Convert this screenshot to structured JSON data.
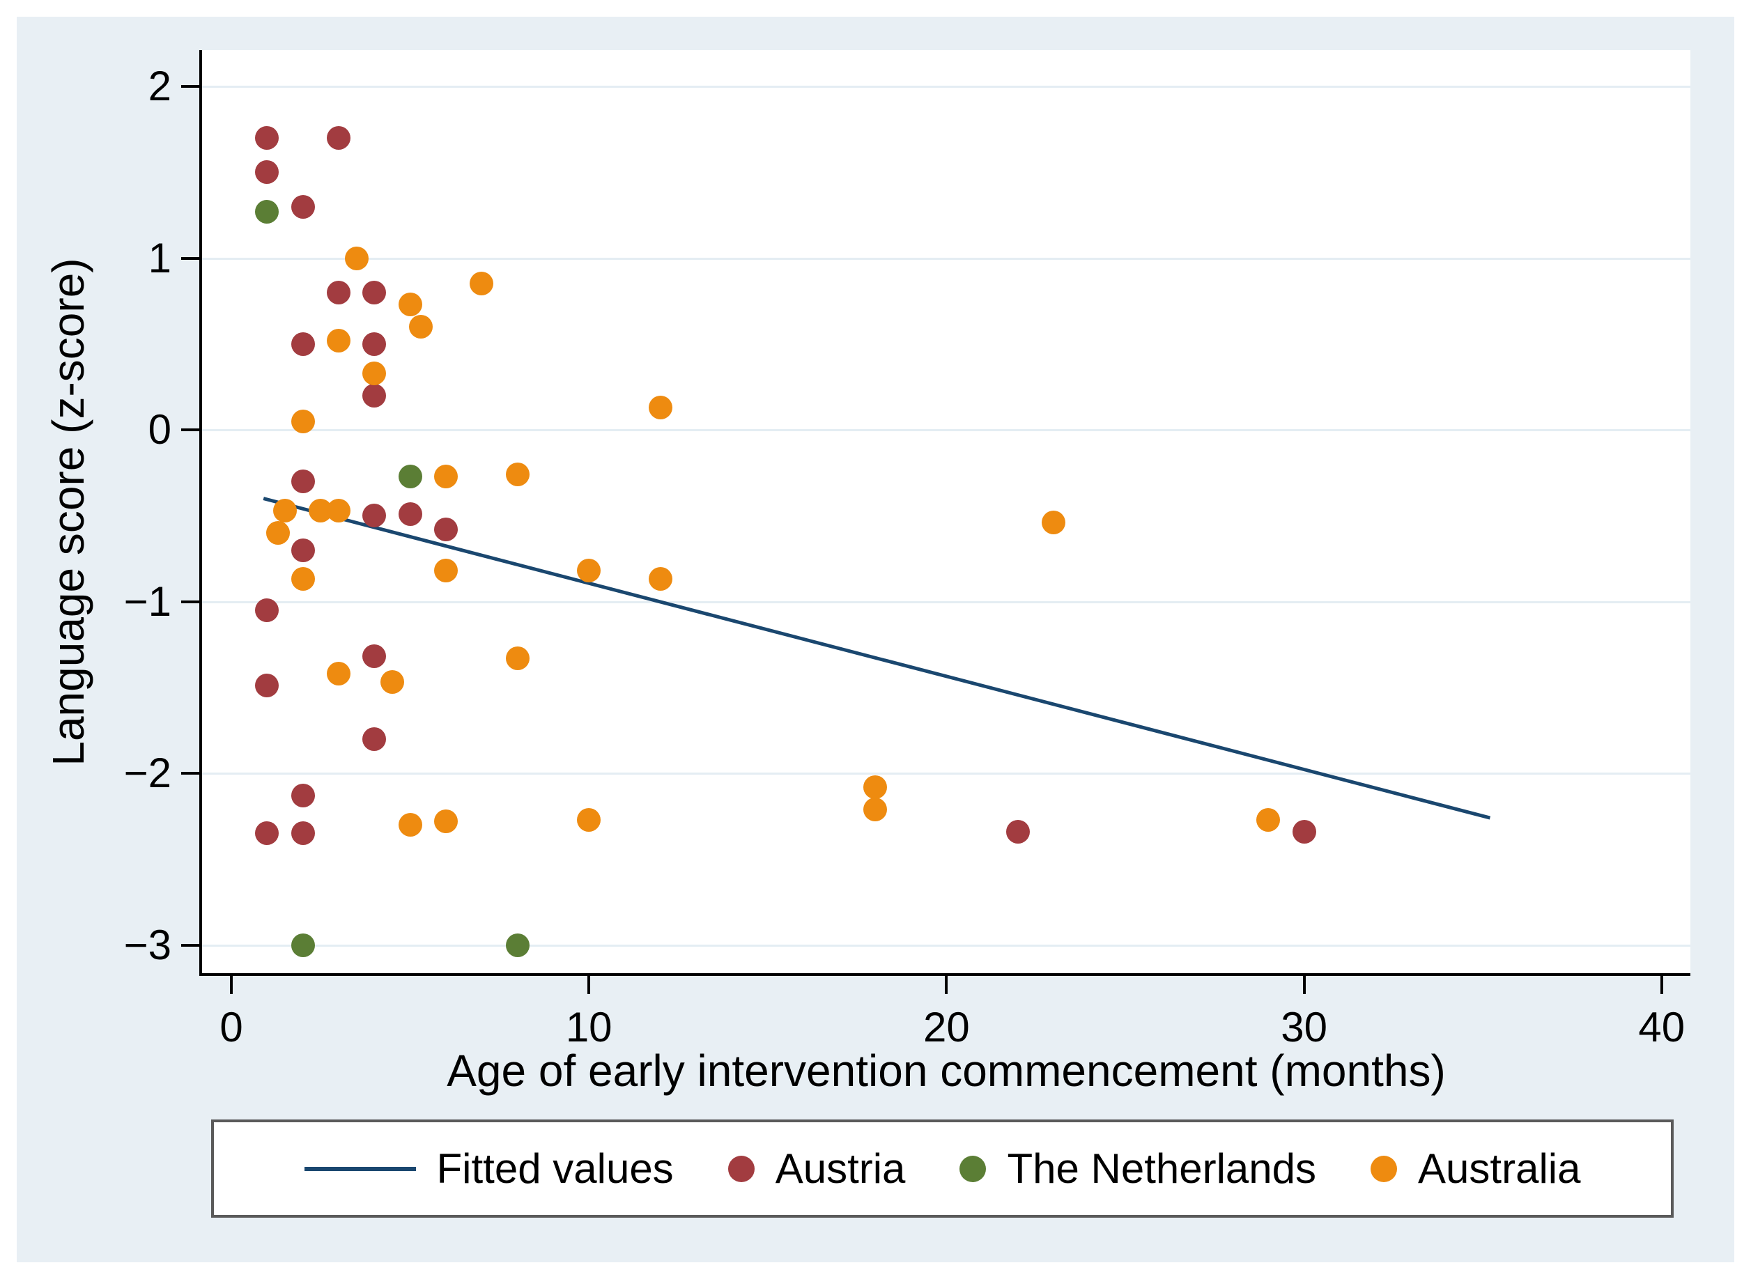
{
  "figure": {
    "background": "#e8eff4",
    "plot_background": "#ffffff",
    "grid_color": "#e4edf3",
    "axis_color": "#000000"
  },
  "axes": {
    "x_title": "Age of early intervention commencement (months)",
    "y_title": "Language score (z-score)",
    "x_tick_labels": [
      "0",
      "10",
      "20",
      "30",
      "40"
    ],
    "y_tick_labels": [
      "2",
      "1",
      "0",
      "−1",
      "−2",
      "−3"
    ]
  },
  "legend": {
    "items": [
      {
        "label": "Fitted values",
        "marker": "line",
        "color": "#1a476f"
      },
      {
        "label": "Austria",
        "marker": "dot",
        "color": "#a23c40"
      },
      {
        "label": "The Netherlands",
        "marker": "dot",
        "color": "#5b7e35"
      },
      {
        "label": "Australia",
        "marker": "dot",
        "color": "#ee8b10"
      }
    ]
  },
  "chart_data": {
    "type": "scatter",
    "title": "",
    "xlabel": "Age of early intervention commencement (months)",
    "ylabel": "Language score (z-score)",
    "xlim": [
      -0.8,
      40.8
    ],
    "ylim": [
      -3.16,
      2.21
    ],
    "x_ticks": [
      0,
      10,
      20,
      30,
      40
    ],
    "y_ticks": [
      2,
      1,
      0,
      -1,
      -2,
      -3
    ],
    "grid": "horizontal",
    "legend_position": "bottom",
    "series": [
      {
        "name": "Austria",
        "color": "#a23c40",
        "points": [
          [
            1,
            1.7
          ],
          [
            3,
            1.7
          ],
          [
            1,
            1.5
          ],
          [
            2,
            1.3
          ],
          [
            3,
            0.8
          ],
          [
            4,
            0.8
          ],
          [
            2,
            0.5
          ],
          [
            4,
            0.5
          ],
          [
            4,
            0.2
          ],
          [
            2,
            -0.3
          ],
          [
            4,
            -0.5
          ],
          [
            5,
            -0.49
          ],
          [
            6,
            -0.58
          ],
          [
            2,
            -0.7
          ],
          [
            1,
            -1.05
          ],
          [
            4,
            -1.32
          ],
          [
            1,
            -1.49
          ],
          [
            4,
            -1.8
          ],
          [
            2,
            -2.13
          ],
          [
            1,
            -2.35
          ],
          [
            2,
            -2.35
          ],
          [
            22,
            -2.34
          ],
          [
            30,
            -2.34
          ]
        ]
      },
      {
        "name": "The Netherlands",
        "color": "#5b7e35",
        "points": [
          [
            1,
            1.27
          ],
          [
            5,
            -0.27
          ],
          [
            2,
            -3.0
          ],
          [
            8,
            -3.0
          ]
        ]
      },
      {
        "name": "Australia",
        "color": "#ee8b10",
        "points": [
          [
            3.5,
            1.0
          ],
          [
            7,
            0.85
          ],
          [
            5,
            0.73
          ],
          [
            5.3,
            0.6
          ],
          [
            3,
            0.52
          ],
          [
            4,
            0.33
          ],
          [
            2,
            0.05
          ],
          [
            12,
            0.13
          ],
          [
            1.5,
            -0.47
          ],
          [
            2.5,
            -0.47
          ],
          [
            3,
            -0.47
          ],
          [
            1.3,
            -0.6
          ],
          [
            6,
            -0.27
          ],
          [
            8,
            -0.26
          ],
          [
            2,
            -0.87
          ],
          [
            6,
            -0.82
          ],
          [
            10,
            -0.82
          ],
          [
            12,
            -0.87
          ],
          [
            23,
            -0.54
          ],
          [
            3,
            -1.42
          ],
          [
            4.5,
            -1.47
          ],
          [
            8,
            -1.33
          ],
          [
            5,
            -2.3
          ],
          [
            6,
            -2.28
          ],
          [
            10,
            -2.27
          ],
          [
            18,
            -2.08
          ],
          [
            18,
            -2.21
          ],
          [
            29,
            -2.27
          ]
        ]
      }
    ],
    "fitted_line": {
      "name": "Fitted values",
      "color": "#1a476f",
      "x": [
        0.9,
        35.2
      ],
      "y": [
        -0.4,
        -2.26
      ]
    }
  }
}
